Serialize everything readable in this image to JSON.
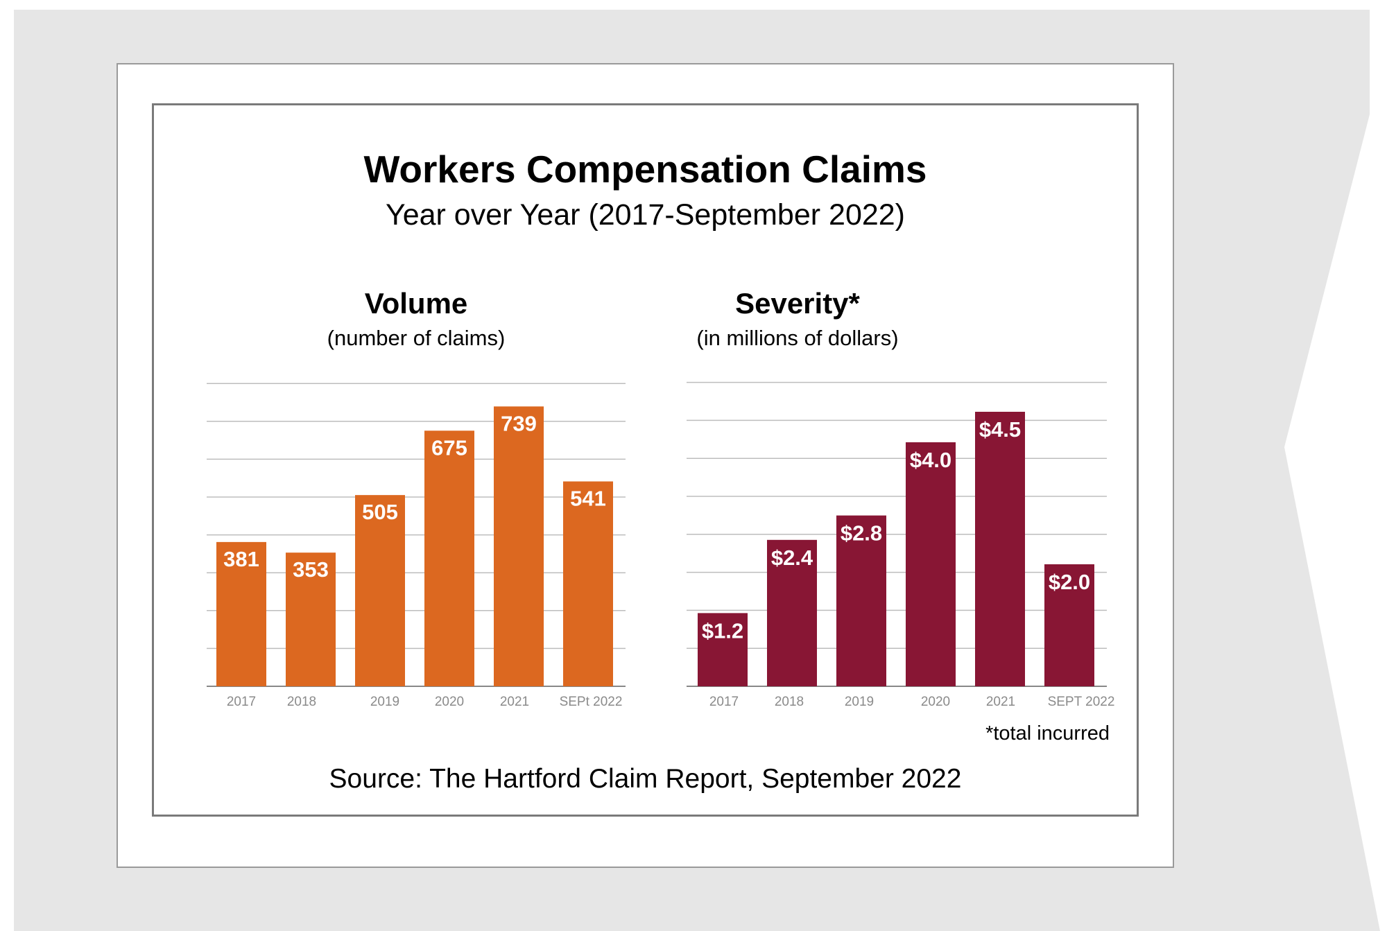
{
  "header": {
    "title": "Workers Compensation Claims",
    "subtitle": "Year over Year (2017-September 2022)"
  },
  "volume": {
    "title": "Volume",
    "subtitle": "(number of claims)"
  },
  "severity": {
    "title": "Severity*",
    "subtitle": "(in millions of dollars)",
    "footnote": "*total incurred"
  },
  "source": "Source: The Hartford Claim Report, September 2022",
  "colors": {
    "volume_bar": "#DC6820",
    "severity_bar": "#881634",
    "gridline": "#bdbdbd",
    "tick_label": "#8a8a8a",
    "background_shape": "#e6e6e6"
  },
  "chart_data": [
    {
      "type": "bar",
      "title": "Volume",
      "subtitle": "(number of claims)",
      "categories": [
        "2017",
        "2018",
        "2019",
        "2020",
        "2021",
        "SEPt  2022"
      ],
      "values": [
        381,
        353,
        505,
        675,
        739,
        541
      ],
      "value_labels": [
        "381",
        "353",
        "505",
        "675",
        "739",
        "541"
      ],
      "ylim": [
        0,
        800
      ],
      "grid": true,
      "legend": "none"
    },
    {
      "type": "bar",
      "title": "Severity*",
      "subtitle": "(in millions of dollars)",
      "categories": [
        "2017",
        "2018",
        "2019",
        "2020",
        "2021",
        "SEPT 2022"
      ],
      "values": [
        1.2,
        2.4,
        2.8,
        4.0,
        4.5,
        2.0
      ],
      "value_labels": [
        "$1.2",
        "$2.4",
        "$2.8",
        "$4.0",
        "$4.5",
        "$2.0"
      ],
      "ylim": [
        0,
        4.0
      ],
      "grid": true,
      "legend": "none"
    }
  ]
}
